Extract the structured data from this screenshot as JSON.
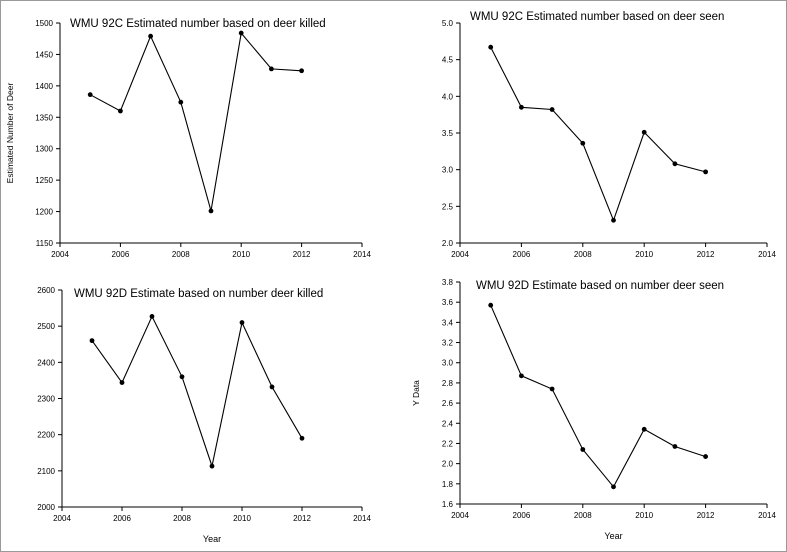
{
  "chart_data": [
    {
      "type": "line",
      "title": "WMU 92C Estimated number based on deer killed",
      "xlabel": "",
      "ylabel": "Estimated Number of Deer",
      "x": [
        2005,
        2006,
        2007,
        2008,
        2009,
        2010,
        2011,
        2012
      ],
      "values": [
        1386,
        1360,
        1479,
        1374,
        1201,
        1484,
        1427,
        1424
      ],
      "xlim": [
        2004,
        2014
      ],
      "ylim": [
        1150,
        1500
      ],
      "xticks": [
        2004,
        2006,
        2008,
        2010,
        2012,
        2014
      ],
      "yticks": [
        1150,
        1200,
        1250,
        1300,
        1350,
        1400,
        1450,
        1500
      ],
      "ytick_decimals": 0
    },
    {
      "type": "line",
      "title": "WMU 92C Estimated number based on deer seen",
      "xlabel": "",
      "ylabel": "",
      "x": [
        2005,
        2006,
        2007,
        2008,
        2009,
        2010,
        2011,
        2012
      ],
      "values": [
        4.67,
        3.85,
        3.82,
        3.36,
        2.31,
        3.51,
        3.08,
        2.97
      ],
      "xlim": [
        2004,
        2014
      ],
      "ylim": [
        2.0,
        5.0
      ],
      "xticks": [
        2004,
        2006,
        2008,
        2010,
        2012,
        2014
      ],
      "yticks": [
        2.0,
        2.5,
        3.0,
        3.5,
        4.0,
        4.5,
        5.0
      ],
      "ytick_decimals": 1
    },
    {
      "type": "line",
      "title": "WMU 92D Estimate based on number deer killed",
      "xlabel": "Year",
      "ylabel": "",
      "x": [
        2005,
        2006,
        2007,
        2008,
        2009,
        2010,
        2011,
        2012
      ],
      "values": [
        2460,
        2344,
        2527,
        2360,
        2113,
        2510,
        2332,
        2190
      ],
      "xlim": [
        2004,
        2014
      ],
      "ylim": [
        2000,
        2600
      ],
      "xticks": [
        2004,
        2006,
        2008,
        2010,
        2012,
        2014
      ],
      "yticks": [
        2000,
        2100,
        2200,
        2300,
        2400,
        2500,
        2600
      ],
      "ytick_decimals": 0
    },
    {
      "type": "line",
      "title": "WMU 92D Estimate based on number deer seen",
      "xlabel": "Year",
      "ylabel": "Y Data",
      "x": [
        2005,
        2006,
        2007,
        2008,
        2009,
        2010,
        2011,
        2012
      ],
      "values": [
        3.57,
        2.87,
        2.74,
        2.14,
        1.77,
        2.34,
        2.17,
        2.07
      ],
      "xlim": [
        2004,
        2014
      ],
      "ylim": [
        1.6,
        3.8
      ],
      "xticks": [
        2004,
        2006,
        2008,
        2010,
        2012,
        2014
      ],
      "yticks": [
        1.6,
        1.8,
        2.0,
        2.2,
        2.4,
        2.6,
        2.8,
        3.0,
        3.2,
        3.4,
        3.6,
        3.8
      ],
      "ytick_decimals": 1
    }
  ],
  "colors": {
    "line": "#000000",
    "axis": "#000000",
    "frame": "#9a9a9a"
  }
}
